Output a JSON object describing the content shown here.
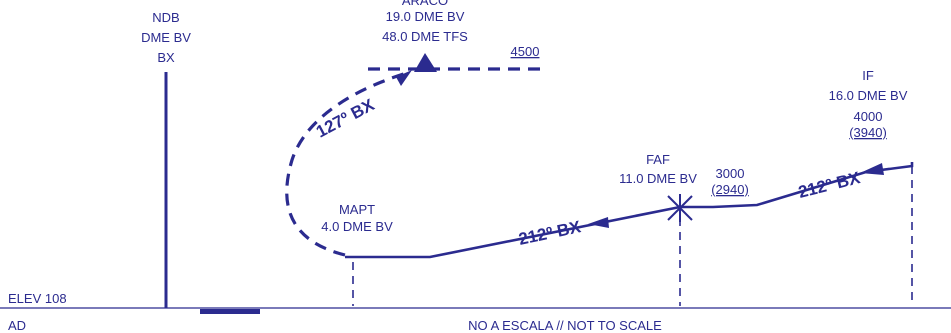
{
  "ndb": {
    "line1": "NDB",
    "line2": "DME BV",
    "line3": "BX"
  },
  "araco": {
    "name": "ARACO",
    "line1": "19.0 DME BV",
    "line2": "48.0 DME TFS",
    "altitude": "4500"
  },
  "if_fix": {
    "name": "IF",
    "distance": "16.0 DME BV",
    "altitude": "4000",
    "altitude_msl": "(3940)"
  },
  "faf": {
    "name": "FAF",
    "distance": "11.0 DME BV",
    "altitude": "3000",
    "altitude_msl": "(2940)"
  },
  "mapt": {
    "name": "MAPT",
    "distance": "4.0 DME BV"
  },
  "courses": {
    "missed_approach": "127º BX",
    "final": "212º BX",
    "intermediate": "212º BX"
  },
  "elevation": "ELEV 108",
  "aerodrome": "AD",
  "scale_note": "NO A ESCALA // NOT TO SCALE",
  "colors": {
    "chart_ink": "#2b2b8f"
  }
}
